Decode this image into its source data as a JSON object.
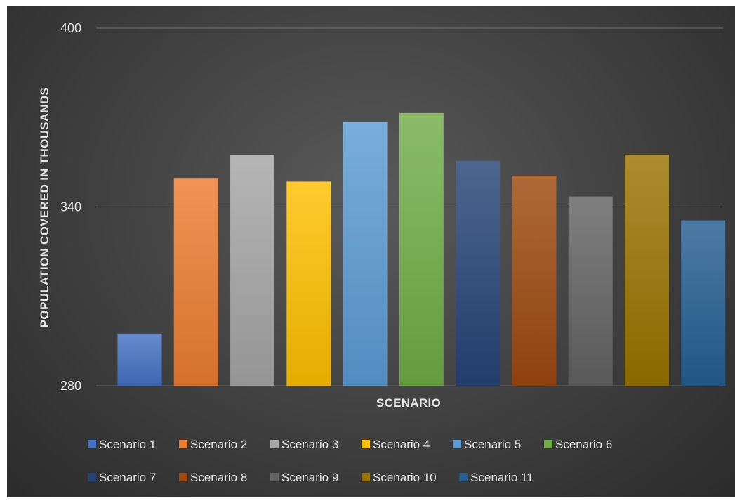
{
  "chart_data": {
    "type": "bar",
    "title": "",
    "xlabel": "SCENARIO",
    "ylabel": "POPULATION  COVERED IN THOUSANDS",
    "ylim": [
      280,
      400
    ],
    "yticks": [
      "280",
      "340",
      "400"
    ],
    "grid": true,
    "legend_position": "bottom",
    "series": [
      {
        "name": "Scenario 1",
        "value": 297.5,
        "color": "#4472c4"
      },
      {
        "name": "Scenario 2",
        "value": 349.5,
        "color": "#ed7d31"
      },
      {
        "name": "Scenario 3",
        "value": 357.5,
        "color": "#a5a5a5"
      },
      {
        "name": "Scenario 4",
        "value": 348.5,
        "color": "#ffc000"
      },
      {
        "name": "Scenario 5",
        "value": 368.5,
        "color": "#5b9bd5"
      },
      {
        "name": "Scenario 6",
        "value": 371.5,
        "color": "#70ad47"
      },
      {
        "name": "Scenario 7",
        "value": 355.5,
        "color": "#264478"
      },
      {
        "name": "Scenario 8",
        "value": 350.5,
        "color": "#9e480e"
      },
      {
        "name": "Scenario 9",
        "value": 343.5,
        "color": "#636363"
      },
      {
        "name": "Scenario 10",
        "value": 357.5,
        "color": "#997300"
      },
      {
        "name": "Scenario 11",
        "value": 335.5,
        "color": "#255e91"
      }
    ]
  }
}
